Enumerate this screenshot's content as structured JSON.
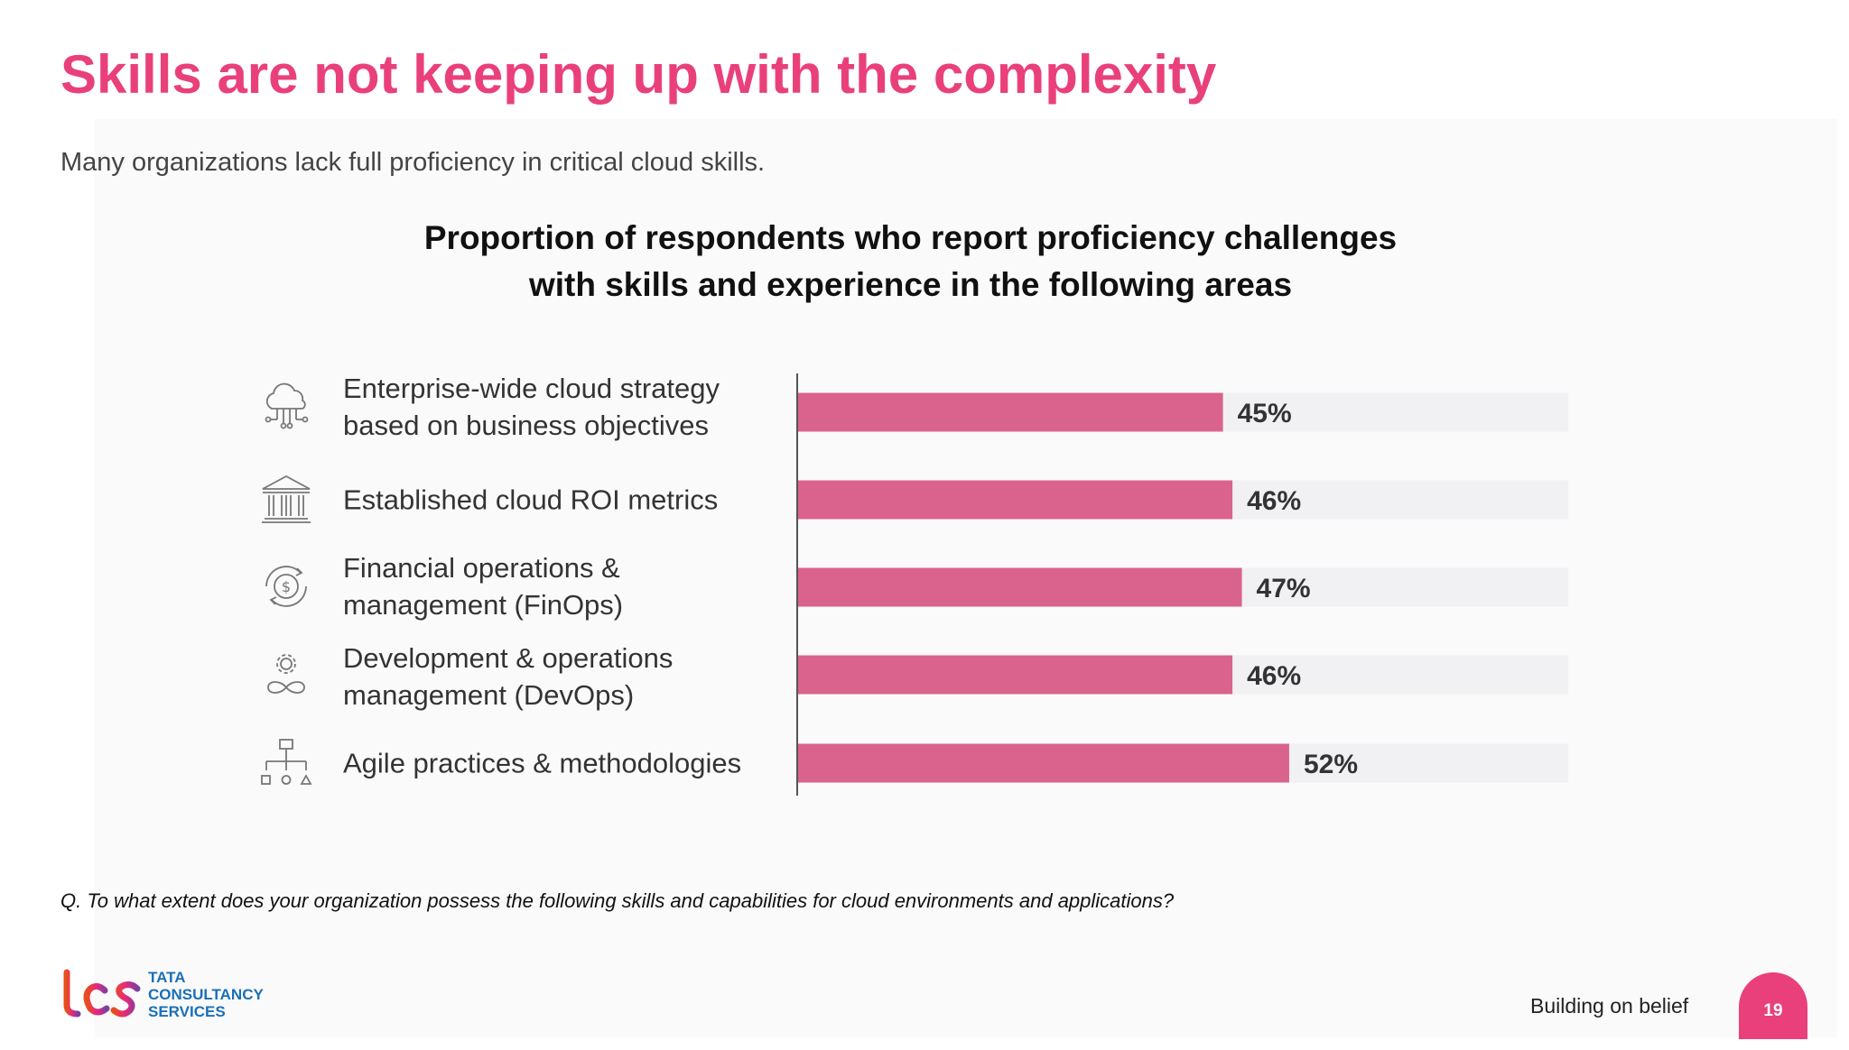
{
  "slide": {
    "title": "Skills are not keeping up with the complexity",
    "subtitle": "Many organizations lack full proficiency in critical cloud skills.",
    "question": "Q. To what extent does your organization possess the following skills and capabilities for cloud environments and applications?",
    "footer": {
      "logo_text": [
        "TATA",
        "CONSULTANCY",
        "SERVICES"
      ],
      "tagline": "Building on belief",
      "page_number": "19"
    }
  },
  "chart_data": {
    "type": "bar",
    "orientation": "horizontal",
    "title_lines": [
      "Proportion of respondents who report proficiency challenges",
      "with skills and experience in the following areas"
    ],
    "categories": [
      "Enterprise-wide cloud strategy\nbased on business objectives",
      "Established cloud ROI metrics",
      "Financial operations &\nmanagement (FinOps)",
      "Development & operations\nmanagement (DevOps)",
      "Agile practices & methodologies"
    ],
    "category_icons": [
      "cloud-network-icon",
      "bank-building-icon",
      "dollar-cycle-icon",
      "devops-gear-infinity-icon",
      "org-chart-shapes-icon"
    ],
    "values": [
      45,
      46,
      47,
      46,
      52
    ],
    "value_labels": [
      "45%",
      "46%",
      "47%",
      "46%",
      "52%"
    ],
    "xlim": [
      0,
      100
    ],
    "unit": "%",
    "bar_color": "#d9638c",
    "track_color": "#f1f0f2",
    "grid": false,
    "legend": "none"
  }
}
